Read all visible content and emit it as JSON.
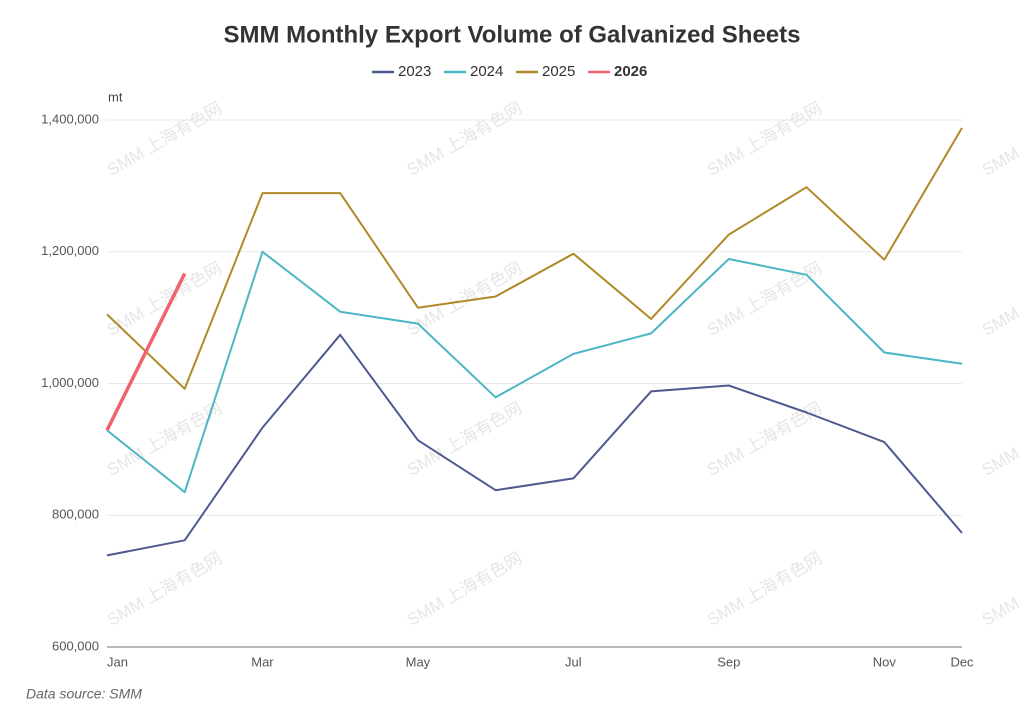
{
  "chart_data": {
    "type": "line",
    "title": "SMM Monthly Export Volume of Galvanized Sheets",
    "y_unit": "mt",
    "source": "Data source:  SMM",
    "watermark": "SMM 上海有色网",
    "categories": [
      "Jan",
      null,
      "Mar",
      null,
      "May",
      null,
      "Jul",
      null,
      "Sep",
      null,
      "Nov",
      "Dec"
    ],
    "series": [
      {
        "name": "2023",
        "color": "#4e5a8f",
        "values": [
          739000,
          762000,
          933000,
          1074000,
          914000,
          838000,
          856000,
          988000,
          997000,
          956000,
          911000,
          773000
        ]
      },
      {
        "name": "2024",
        "color": "#4db6c4",
        "values": [
          929000,
          835000,
          1200000,
          1109000,
          1091000,
          979000,
          1045000,
          1076000,
          1189000,
          1165000,
          1047000,
          1030000
        ]
      },
      {
        "name": "2025",
        "color": "#b08928",
        "values": [
          1105000,
          992000,
          1289000,
          1289000,
          1115000,
          1132000,
          1197000,
          1098000,
          1226000,
          1298000,
          1188000,
          1388000
        ]
      },
      {
        "name": "2026",
        "color": "#f0636e",
        "values": [
          929000,
          1167000,
          null,
          null,
          null,
          null,
          null,
          null,
          null,
          null,
          null,
          null
        ]
      }
    ],
    "ylim": [
      600000,
      1400000
    ],
    "yticks": [
      {
        "value": 600000,
        "label": "600,000"
      },
      {
        "value": 800000,
        "label": "800,000"
      },
      {
        "value": 1000000,
        "label": "1,000,000"
      },
      {
        "value": 1200000,
        "label": "1,200,000"
      },
      {
        "value": 1400000,
        "label": "1,400,000"
      }
    ],
    "grid": true
  }
}
